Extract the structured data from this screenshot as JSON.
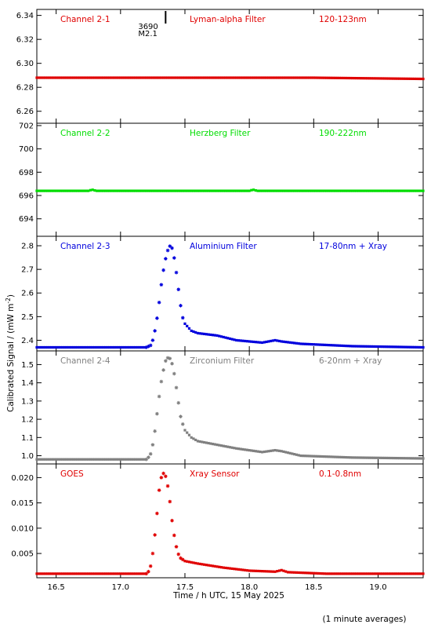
{
  "colors": {
    "axis": "#000000",
    "red": "#e00000",
    "green": "#00dd00",
    "blue": "#0000dd",
    "gray": "#808080",
    "goes": "#e00000"
  },
  "chart_data": {
    "type": "scatter",
    "x_axis": {
      "label": "Time / h UTC, 15 May 2025",
      "range": [
        16.35,
        19.35
      ],
      "ticks": [
        16.5,
        17.0,
        17.5,
        18.0,
        18.5,
        19.0
      ],
      "tick_labels": [
        "16.5",
        "17.0",
        "17.5",
        "18.0",
        "18.5",
        "19.0"
      ]
    },
    "y_axis_label": "Calibrated Signal / (mW m",
    "y_axis_label_sup": "-2",
    "y_axis_label_close": ")",
    "footnote": "(1 minute averages)",
    "flare_annotation": {
      "x": 17.35,
      "line1": "3690",
      "line2": "M2.1"
    },
    "panels": [
      {
        "channel": "Channel 2-1",
        "filter": "Lyman-alpha Filter",
        "band": "120-123nm",
        "color": "red",
        "ylim": [
          6.25,
          6.345
        ],
        "yticks": [
          6.26,
          6.28,
          6.3,
          6.32,
          6.34
        ],
        "ytick_labels": [
          "6.26",
          "6.28",
          "6.30",
          "6.32",
          "6.34"
        ],
        "series": [
          [
            16.35,
            6.288
          ],
          [
            17.0,
            6.288
          ],
          [
            17.5,
            6.288
          ],
          [
            18.0,
            6.288
          ],
          [
            18.5,
            6.288
          ],
          [
            19.35,
            6.287
          ]
        ]
      },
      {
        "channel": "Channel 2-2",
        "filter": "Herzberg Filter",
        "band": "190-222nm",
        "color": "green",
        "ylim": [
          692.5,
          702.2
        ],
        "yticks": [
          694,
          696,
          698,
          700,
          702
        ],
        "ytick_labels": [
          "694",
          "696",
          "698",
          "700",
          "702"
        ],
        "series": [
          [
            16.35,
            696.4
          ],
          [
            16.75,
            696.4
          ],
          [
            16.78,
            696.5
          ],
          [
            16.81,
            696.4
          ],
          [
            18.0,
            696.4
          ],
          [
            18.03,
            696.5
          ],
          [
            18.06,
            696.4
          ],
          [
            19.35,
            696.4
          ]
        ]
      },
      {
        "channel": "Channel 2-3",
        "filter": "Aluminium Filter",
        "band": "17-80nm + Xray",
        "color": "blue",
        "ylim": [
          2.355,
          2.84
        ],
        "yticks": [
          2.4,
          2.5,
          2.6,
          2.7,
          2.8
        ],
        "ytick_labels": [
          "2.4",
          "2.5",
          "2.6",
          "2.7",
          "2.8"
        ],
        "series": [
          [
            16.35,
            2.37
          ],
          [
            17.2,
            2.37
          ],
          [
            17.24,
            2.38
          ],
          [
            17.26,
            2.42
          ],
          [
            17.28,
            2.48
          ],
          [
            17.3,
            2.56
          ],
          [
            17.32,
            2.65
          ],
          [
            17.34,
            2.72
          ],
          [
            17.36,
            2.77
          ],
          [
            17.38,
            2.8
          ],
          [
            17.4,
            2.79
          ],
          [
            17.42,
            2.74
          ],
          [
            17.44,
            2.66
          ],
          [
            17.46,
            2.57
          ],
          [
            17.48,
            2.5
          ],
          [
            17.5,
            2.47
          ],
          [
            17.55,
            2.44
          ],
          [
            17.6,
            2.43
          ],
          [
            17.75,
            2.42
          ],
          [
            17.9,
            2.4
          ],
          [
            18.1,
            2.39
          ],
          [
            18.2,
            2.4
          ],
          [
            18.25,
            2.395
          ],
          [
            18.4,
            2.385
          ],
          [
            18.8,
            2.375
          ],
          [
            19.35,
            2.37
          ]
        ]
      },
      {
        "channel": "Channel 2-4",
        "filter": "Zirconium Filter",
        "band": "6-20nm + Xray",
        "color": "gray",
        "ylim": [
          0.955,
          1.575
        ],
        "yticks": [
          1.0,
          1.1,
          1.2,
          1.3,
          1.4,
          1.5
        ],
        "ytick_labels": [
          "1.0",
          "1.1",
          "1.2",
          "1.3",
          "1.4",
          "1.5"
        ],
        "series": [
          [
            16.35,
            0.98
          ],
          [
            17.2,
            0.98
          ],
          [
            17.23,
            1.0
          ],
          [
            17.25,
            1.06
          ],
          [
            17.27,
            1.15
          ],
          [
            17.29,
            1.27
          ],
          [
            17.31,
            1.38
          ],
          [
            17.33,
            1.46
          ],
          [
            17.35,
            1.52
          ],
          [
            17.37,
            1.54
          ],
          [
            17.39,
            1.53
          ],
          [
            17.41,
            1.48
          ],
          [
            17.43,
            1.39
          ],
          [
            17.45,
            1.29
          ],
          [
            17.47,
            1.2
          ],
          [
            17.5,
            1.14
          ],
          [
            17.55,
            1.1
          ],
          [
            17.6,
            1.08
          ],
          [
            17.75,
            1.06
          ],
          [
            17.9,
            1.04
          ],
          [
            18.1,
            1.02
          ],
          [
            18.2,
            1.03
          ],
          [
            18.25,
            1.025
          ],
          [
            18.4,
            1.0
          ],
          [
            18.8,
            0.99
          ],
          [
            19.35,
            0.985
          ]
        ]
      },
      {
        "channel": "GOES",
        "filter": "Xray Sensor",
        "band": "0.1-0.8nm",
        "color": "goes",
        "ylim": [
          0.0002,
          0.0227
        ],
        "yticks": [
          0.005,
          0.01,
          0.015,
          0.02
        ],
        "ytick_labels": [
          "0.005",
          "0.010",
          "0.015",
          "0.020"
        ],
        "series": [
          [
            16.35,
            0.001
          ],
          [
            17.2,
            0.001
          ],
          [
            17.22,
            0.0015
          ],
          [
            17.24,
            0.003
          ],
          [
            17.26,
            0.007
          ],
          [
            17.28,
            0.012
          ],
          [
            17.3,
            0.0175
          ],
          [
            17.32,
            0.0205
          ],
          [
            17.34,
            0.021
          ],
          [
            17.36,
            0.0195
          ],
          [
            17.38,
            0.016
          ],
          [
            17.4,
            0.0115
          ],
          [
            17.42,
            0.008
          ],
          [
            17.44,
            0.0055
          ],
          [
            17.46,
            0.0042
          ],
          [
            17.5,
            0.0035
          ],
          [
            17.6,
            0.003
          ],
          [
            17.8,
            0.0022
          ],
          [
            18.0,
            0.0016
          ],
          [
            18.2,
            0.0014
          ],
          [
            18.25,
            0.0017
          ],
          [
            18.3,
            0.0013
          ],
          [
            18.6,
            0.001
          ],
          [
            19.35,
            0.001
          ]
        ]
      }
    ]
  }
}
